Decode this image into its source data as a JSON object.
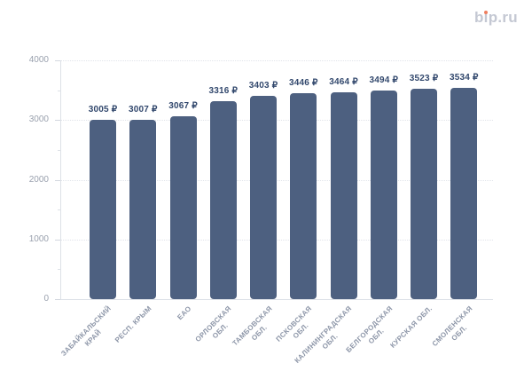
{
  "logo": {
    "text": "bip.ru",
    "prefix": "b",
    "i_char": "ı",
    "suffix": "p.ru",
    "dot_color": "#ee7d5e"
  },
  "chart_data": {
    "type": "bar",
    "title": "",
    "categories": [
      "ЗАБАЙКАЛЬСКИЙ\nКРАЙ",
      "РЕСП. КРЫМ",
      "ЕАО",
      "ОРЛОВСКАЯ\nОБЛ.",
      "ТАМБОВСКАЯ\nОБЛ.",
      "ПСКОВСКАЯ\nОБЛ.",
      "КАЛИНИНГРАДСКАЯ\nОБЛ.",
      "БЕЛГОРОДСКАЯ\nОБЛ.",
      "КУРСКАЯ ОБЛ.",
      "СМОЛЕНСКАЯ\nОБЛ."
    ],
    "values": [
      3005,
      3007,
      3067,
      3316,
      3403,
      3446,
      3464,
      3494,
      3523,
      3534
    ],
    "value_labels": [
      "3005 ₽",
      "3007 ₽",
      "3067 ₽",
      "3316 ₽",
      "3403 ₽",
      "3446 ₽",
      "3464 ₽",
      "3494 ₽",
      "3523 ₽",
      "3534 ₽"
    ],
    "currency": "₽",
    "xlabel": "",
    "ylabel": "",
    "ylim": [
      0,
      4000
    ],
    "yticks_major": [
      0,
      1000,
      2000,
      3000,
      4000
    ],
    "yticks_minor": [
      500,
      1500,
      2500,
      3500
    ],
    "grid": "dotted horizontal lines at major y ticks",
    "legend": "none",
    "bar_color": "#4d6080",
    "value_label_color": "#32486d",
    "axis_tick_label_color": "#9aa1ae",
    "category_label_color": "#8d96a8"
  }
}
